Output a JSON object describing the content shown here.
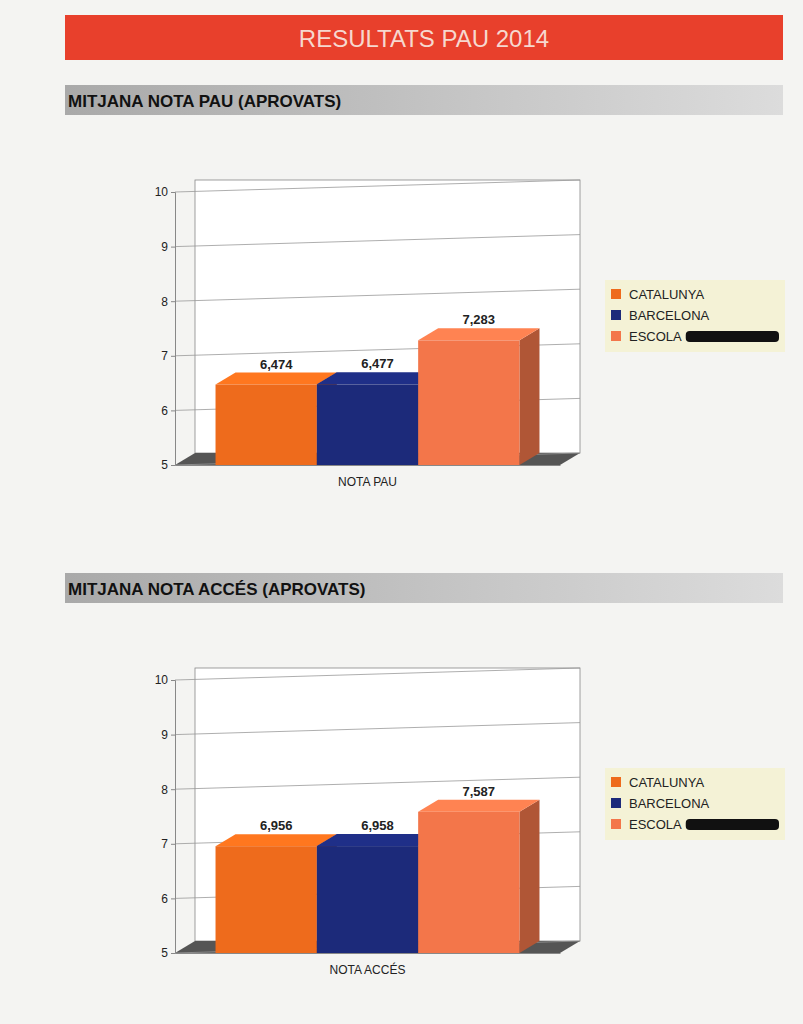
{
  "header": {
    "title": "RESULTATS PAU 2014"
  },
  "chart_data": [
    {
      "type": "bar",
      "title": "MITJANA NOTA PAU (APROVATS)",
      "categories": [
        "NOTA PAU"
      ],
      "series": [
        {
          "name": "CATALUNYA",
          "color": "#ee6b1c",
          "values": [
            6.474
          ],
          "value_labels": [
            "6,474"
          ]
        },
        {
          "name": "BARCELONA",
          "color": "#1c2a7a",
          "values": [
            6.477
          ],
          "value_labels": [
            "6,477"
          ]
        },
        {
          "name": "ESCOLA",
          "color": "#f3764a",
          "values": [
            7.283
          ],
          "value_labels": [
            "7,283"
          ]
        }
      ],
      "ylim": [
        5,
        10
      ],
      "yticks": [
        5,
        6,
        7,
        8,
        9,
        10
      ],
      "grid": true,
      "data_labels": true,
      "legend": "right"
    },
    {
      "type": "bar",
      "title": "MITJANA NOTA ACCÉS (APROVATS)",
      "categories": [
        "NOTA ACCÉS"
      ],
      "series": [
        {
          "name": "CATALUNYA",
          "color": "#ee6b1c",
          "values": [
            6.956
          ],
          "value_labels": [
            "6,956"
          ]
        },
        {
          "name": "BARCELONA",
          "color": "#1c2a7a",
          "values": [
            6.958
          ],
          "value_labels": [
            "6,958"
          ]
        },
        {
          "name": "ESCOLA",
          "color": "#f3764a",
          "values": [
            7.587
          ],
          "value_labels": [
            "7,587"
          ]
        }
      ],
      "ylim": [
        5,
        10
      ],
      "yticks": [
        5,
        6,
        7,
        8,
        9,
        10
      ],
      "grid": true,
      "data_labels": true,
      "legend": "right"
    }
  ]
}
